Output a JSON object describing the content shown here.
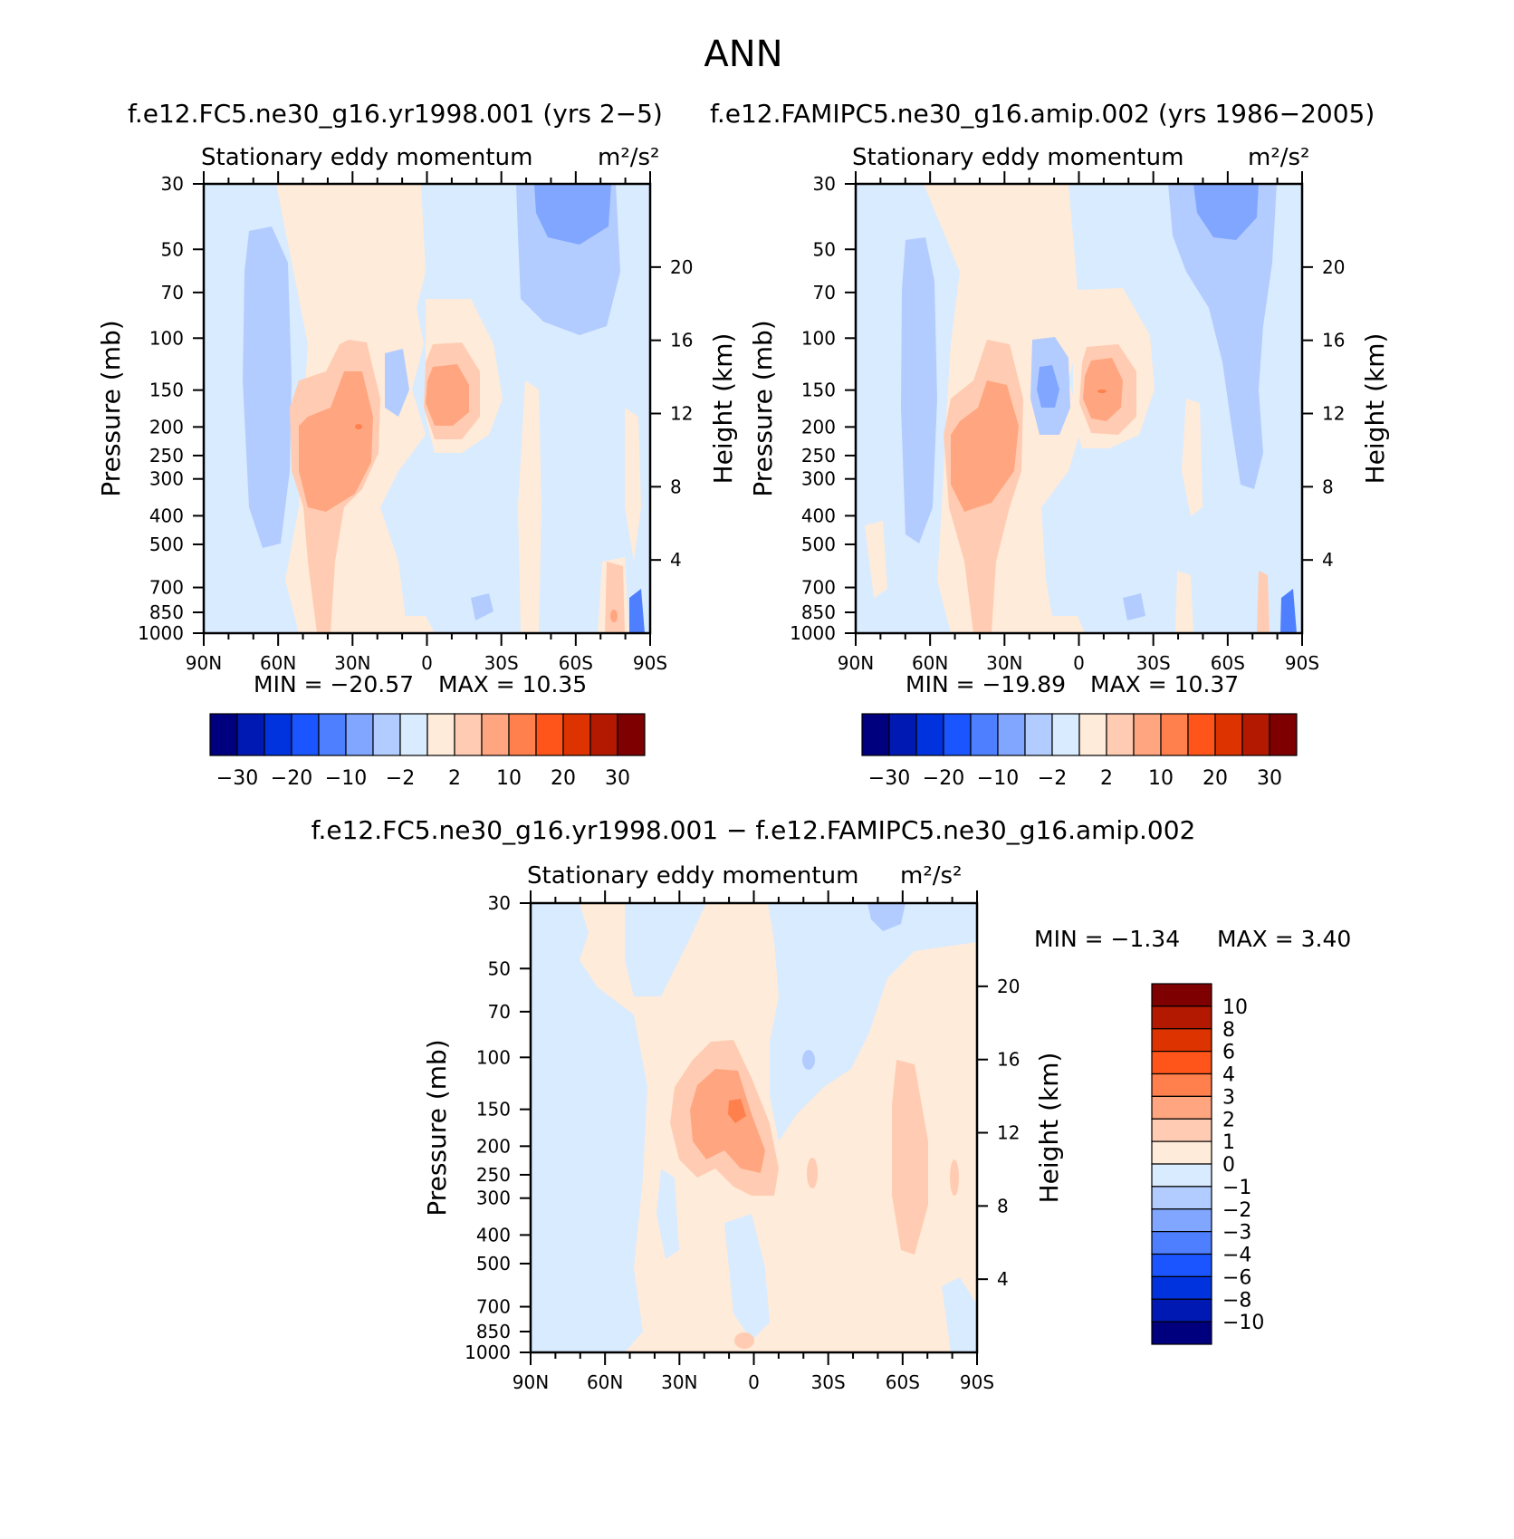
{
  "page": {
    "title": "ANN"
  },
  "colors": {
    "main": [
      "#00007f",
      "#0019b3",
      "#0033dd",
      "#1a55ff",
      "#4d7fff",
      "#80a6ff",
      "#b3ccff",
      "#d9ebff",
      "#ffebd9",
      "#ffccb3",
      "#ffa680",
      "#ff7f4d",
      "#ff551a",
      "#dd3300",
      "#b31900",
      "#7f0000"
    ],
    "diff": [
      "#00007f",
      "#0019b3",
      "#0033dd",
      "#1a55ff",
      "#4d7fff",
      "#80a6ff",
      "#b3ccff",
      "#d9ebff",
      "#ffebd9",
      "#ffccb3",
      "#ffa680",
      "#ff7f4d",
      "#ff551a",
      "#dd3300",
      "#b31900",
      "#7f0000"
    ]
  },
  "chart_data": [
    {
      "type": "heatmap",
      "title": "f.e12.FC5.ne30_g16.yr1998.001 (yrs 2−5)",
      "subtitle": "Stationary eddy momentum",
      "units": "m²/s²",
      "ylabel": "Pressure (mb)",
      "ylabel_right": "Height (km)",
      "x_ticks": [
        "90N",
        "60N",
        "30N",
        "0",
        "30S",
        "60S",
        "90S"
      ],
      "y_ticks": [
        "30",
        "50",
        "70",
        "100",
        "150",
        "200",
        "250",
        "300",
        "400",
        "500",
        "700",
        "850",
        "1000"
      ],
      "y_ticks_right": [
        "20",
        "16",
        "12",
        "8",
        "4"
      ],
      "min_label": "MIN = −20.57",
      "max_label": "MAX = 10.35",
      "min": -20.57,
      "max": 10.35,
      "colorbar_labels": [
        "−30",
        "−20",
        "−10",
        "−2",
        "2",
        "10",
        "20",
        "30"
      ]
    },
    {
      "type": "heatmap",
      "title": "f.e12.FAMIPC5.ne30_g16.amip.002 (yrs 1986−2005)",
      "subtitle": "Stationary eddy momentum",
      "units": "m²/s²",
      "ylabel": "Pressure (mb)",
      "ylabel_right": "Height (km)",
      "x_ticks": [
        "90N",
        "60N",
        "30N",
        "0",
        "30S",
        "60S",
        "90S"
      ],
      "y_ticks": [
        "30",
        "50",
        "70",
        "100",
        "150",
        "200",
        "250",
        "300",
        "400",
        "500",
        "700",
        "850",
        "1000"
      ],
      "y_ticks_right": [
        "20",
        "16",
        "12",
        "8",
        "4"
      ],
      "min_label": "MIN = −19.89",
      "max_label": "MAX = 10.37",
      "min": -19.89,
      "max": 10.37,
      "colorbar_labels": [
        "−30",
        "−20",
        "−10",
        "−2",
        "2",
        "10",
        "20",
        "30"
      ]
    },
    {
      "type": "heatmap",
      "title": "f.e12.FC5.ne30_g16.yr1998.001 − f.e12.FAMIPC5.ne30_g16.amip.002",
      "subtitle": "Stationary eddy momentum",
      "units": "m²/s²",
      "ylabel": "Pressure (mb)",
      "ylabel_right": "Height (km)",
      "x_ticks": [
        "90N",
        "60N",
        "30N",
        "0",
        "30S",
        "60S",
        "90S"
      ],
      "y_ticks": [
        "30",
        "50",
        "70",
        "100",
        "150",
        "200",
        "250",
        "300",
        "400",
        "500",
        "700",
        "850",
        "1000"
      ],
      "y_ticks_right": [
        "20",
        "16",
        "12",
        "8",
        "4"
      ],
      "min_label": "MIN = −1.34",
      "max_label": "MAX = 3.40",
      "min": -1.34,
      "max": 3.4,
      "colorbar_labels": [
        "10",
        "8",
        "6",
        "4",
        "3",
        "2",
        "1",
        "0",
        "−1",
        "−2",
        "−3",
        "−4",
        "−6",
        "−8",
        "−10"
      ]
    }
  ]
}
